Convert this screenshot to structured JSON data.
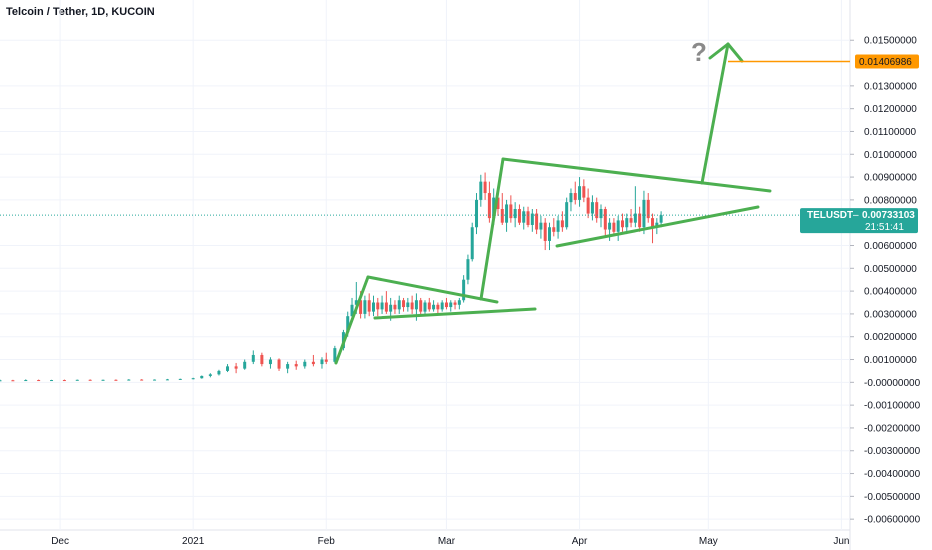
{
  "header": {
    "title": "Telcoin / Tether, 1D, KUCOIN"
  },
  "price_tag": {
    "symbol": "TELUSDT",
    "separator": "–",
    "price": "0.00733103",
    "countdown": "21:51:41"
  },
  "target_tag": {
    "price": "0.01406986"
  },
  "annotation": {
    "question": "?"
  },
  "colors": {
    "up": "#26a69a",
    "down": "#ef5350",
    "drawing": "#4caf50",
    "target": "#ff9800",
    "price_tag": "#26a69a",
    "grid": "#f0f3fa",
    "axis_text": "#131722"
  },
  "chart_data": {
    "type": "candlestick",
    "title": "Telcoin / Tether, 1D, KUCOIN",
    "ylim": [
      -0.0063,
      0.0158
    ],
    "yticks": [
      {
        "value": 0.015,
        "label": "0.01500000"
      },
      {
        "value": 0.013,
        "label": "0.01300000"
      },
      {
        "value": 0.012,
        "label": "0.01200000"
      },
      {
        "value": 0.011,
        "label": "0.01100000"
      },
      {
        "value": 0.01,
        "label": "0.01000000"
      },
      {
        "value": 0.009,
        "label": "0.00900000"
      },
      {
        "value": 0.008,
        "label": "0.00800000"
      },
      {
        "value": 0.006,
        "label": "0.00600000"
      },
      {
        "value": 0.005,
        "label": "0.00500000"
      },
      {
        "value": 0.004,
        "label": "0.00400000"
      },
      {
        "value": 0.003,
        "label": "0.00300000"
      },
      {
        "value": 0.002,
        "label": "0.00200000"
      },
      {
        "value": 0.001,
        "label": "0.00100000"
      },
      {
        "value": 0.0,
        "label": "-0.00000000"
      },
      {
        "value": -0.001,
        "label": "-0.00100000"
      },
      {
        "value": -0.002,
        "label": "-0.00200000"
      },
      {
        "value": -0.003,
        "label": "-0.00300000"
      },
      {
        "value": -0.004,
        "label": "-0.00400000"
      },
      {
        "value": -0.005,
        "label": "-0.00500000"
      },
      {
        "value": -0.006,
        "label": "-0.00600000"
      }
    ],
    "xticks": [
      {
        "date": "2020-12-01",
        "label": "Dec"
      },
      {
        "date": "2021-01-01",
        "label": "2021"
      },
      {
        "date": "2021-02-01",
        "label": "Feb"
      },
      {
        "date": "2021-03-01",
        "label": "Mar"
      },
      {
        "date": "2021-04-01",
        "label": "Apr"
      },
      {
        "date": "2021-05-01",
        "label": "May"
      },
      {
        "date": "2021-06-01",
        "label": "Jun"
      }
    ],
    "xlim": [
      "2020-11-17",
      "2021-06-03"
    ],
    "last_price": 0.00733103,
    "target_price": 0.01406986,
    "series": [
      {
        "date": "2020-11-17",
        "values": [
          8e-05,
          0.00012,
          5e-05,
          9e-05
        ]
      },
      {
        "date": "2020-11-20",
        "values": [
          9e-05,
          0.00011,
          6e-05,
          8e-05
        ]
      },
      {
        "date": "2020-11-23",
        "values": [
          8e-05,
          0.00013,
          6e-05,
          0.0001
        ]
      },
      {
        "date": "2020-11-26",
        "values": [
          0.0001,
          0.00012,
          7e-05,
          9e-05
        ]
      },
      {
        "date": "2020-11-29",
        "values": [
          9e-05,
          0.00011,
          7e-05,
          0.0001
        ]
      },
      {
        "date": "2020-12-02",
        "values": [
          0.0001,
          0.00012,
          8e-05,
          9e-05
        ]
      },
      {
        "date": "2020-12-05",
        "values": [
          9e-05,
          0.00012,
          8e-05,
          0.00011
        ]
      },
      {
        "date": "2020-12-08",
        "values": [
          0.00011,
          0.00013,
          9e-05,
          0.0001
        ]
      },
      {
        "date": "2020-12-11",
        "values": [
          0.0001,
          0.00012,
          8e-05,
          0.00011
        ]
      },
      {
        "date": "2020-12-14",
        "values": [
          0.00011,
          0.00013,
          9e-05,
          0.0001
        ]
      },
      {
        "date": "2020-12-17",
        "values": [
          0.0001,
          0.00014,
          9e-05,
          0.00012
        ]
      },
      {
        "date": "2020-12-20",
        "values": [
          0.00012,
          0.00014,
          0.0001,
          0.00011
        ]
      },
      {
        "date": "2020-12-23",
        "values": [
          0.00011,
          0.00013,
          9e-05,
          0.00012
        ]
      },
      {
        "date": "2020-12-26",
        "values": [
          0.00012,
          0.00015,
          0.0001,
          0.00013
        ]
      },
      {
        "date": "2020-12-29",
        "values": [
          0.00013,
          0.00016,
          0.00011,
          0.00015
        ]
      },
      {
        "date": "2021-01-01",
        "values": [
          0.00015,
          0.0002,
          0.00013,
          0.00018
        ]
      },
      {
        "date": "2021-01-03",
        "values": [
          0.00018,
          0.0003,
          0.00016,
          0.00028
        ]
      },
      {
        "date": "2021-01-05",
        "values": [
          0.00028,
          0.0004,
          0.00022,
          0.00035
        ]
      },
      {
        "date": "2021-01-07",
        "values": [
          0.00035,
          0.00055,
          0.0003,
          0.0005
        ]
      },
      {
        "date": "2021-01-09",
        "values": [
          0.0005,
          0.0008,
          0.00045,
          0.0007
        ]
      },
      {
        "date": "2021-01-11",
        "values": [
          0.0007,
          0.00085,
          0.0004,
          0.0006
        ]
      },
      {
        "date": "2021-01-13",
        "values": [
          0.0006,
          0.001,
          0.00055,
          0.0009
        ]
      },
      {
        "date": "2021-01-15",
        "values": [
          0.0009,
          0.0014,
          0.0008,
          0.0012
        ]
      },
      {
        "date": "2021-01-17",
        "values": [
          0.0012,
          0.0013,
          0.0007,
          0.0008
        ]
      },
      {
        "date": "2021-01-19",
        "values": [
          0.0008,
          0.0011,
          0.0006,
          0.001
        ]
      },
      {
        "date": "2021-01-21",
        "values": [
          0.001,
          0.00105,
          0.0005,
          0.0006
        ]
      },
      {
        "date": "2021-01-23",
        "values": [
          0.0006,
          0.0009,
          0.0004,
          0.0008
        ]
      },
      {
        "date": "2021-01-25",
        "values": [
          0.0008,
          0.00095,
          0.00055,
          0.0007
        ]
      },
      {
        "date": "2021-01-27",
        "values": [
          0.0007,
          0.001,
          0.0006,
          0.0009
        ]
      },
      {
        "date": "2021-01-29",
        "values": [
          0.0009,
          0.0012,
          0.0007,
          0.0008
        ]
      },
      {
        "date": "2021-01-31",
        "values": [
          0.0008,
          0.0011,
          0.0006,
          0.001
        ]
      },
      {
        "date": "2021-02-01",
        "values": [
          0.001,
          0.0013,
          0.0008,
          0.0009
        ]
      },
      {
        "date": "2021-02-03",
        "values": [
          0.0009,
          0.0016,
          0.00085,
          0.0015
        ]
      },
      {
        "date": "2021-02-05",
        "values": [
          0.0015,
          0.0023,
          0.0014,
          0.0022
        ]
      },
      {
        "date": "2021-02-06",
        "values": [
          0.0022,
          0.0031,
          0.002,
          0.0029
        ]
      },
      {
        "date": "2021-02-07",
        "values": [
          0.0029,
          0.0037,
          0.0027,
          0.0034
        ]
      },
      {
        "date": "2021-02-08",
        "values": [
          0.0034,
          0.0044,
          0.003,
          0.0036
        ]
      },
      {
        "date": "2021-02-09",
        "values": [
          0.0036,
          0.004,
          0.0028,
          0.003
        ]
      },
      {
        "date": "2021-02-10",
        "values": [
          0.003,
          0.0038,
          0.0028,
          0.0036
        ]
      },
      {
        "date": "2021-02-11",
        "values": [
          0.0036,
          0.0039,
          0.0029,
          0.0031
        ]
      },
      {
        "date": "2021-02-12",
        "values": [
          0.0031,
          0.0038,
          0.0029,
          0.0035
        ]
      },
      {
        "date": "2021-02-13",
        "values": [
          0.0035,
          0.0037,
          0.0029,
          0.0032
        ]
      },
      {
        "date": "2021-02-14",
        "values": [
          0.0032,
          0.0038,
          0.003,
          0.0035
        ]
      },
      {
        "date": "2021-02-15",
        "values": [
          0.0035,
          0.004,
          0.003,
          0.0031
        ]
      },
      {
        "date": "2021-02-16",
        "values": [
          0.0031,
          0.0037,
          0.0027,
          0.0034
        ]
      },
      {
        "date": "2021-02-17",
        "values": [
          0.0034,
          0.0036,
          0.003,
          0.0032
        ]
      },
      {
        "date": "2021-02-18",
        "values": [
          0.0032,
          0.0038,
          0.003,
          0.0036
        ]
      },
      {
        "date": "2021-02-19",
        "values": [
          0.0036,
          0.0037,
          0.0031,
          0.0033
        ]
      },
      {
        "date": "2021-02-20",
        "values": [
          0.0033,
          0.0037,
          0.0031,
          0.0035
        ]
      },
      {
        "date": "2021-02-21",
        "values": [
          0.0035,
          0.0038,
          0.003,
          0.0032
        ]
      },
      {
        "date": "2021-02-22",
        "values": [
          0.0032,
          0.0039,
          0.0027,
          0.0036
        ]
      },
      {
        "date": "2021-02-23",
        "values": [
          0.0036,
          0.0037,
          0.0029,
          0.0031
        ]
      },
      {
        "date": "2021-02-24",
        "values": [
          0.0031,
          0.0036,
          0.003,
          0.0035
        ]
      },
      {
        "date": "2021-02-25",
        "values": [
          0.0035,
          0.0037,
          0.0031,
          0.0032
        ]
      },
      {
        "date": "2021-02-26",
        "values": [
          0.0032,
          0.0036,
          0.0031,
          0.0034
        ]
      },
      {
        "date": "2021-02-27",
        "values": [
          0.0034,
          0.0035,
          0.003,
          0.0032
        ]
      },
      {
        "date": "2021-02-28",
        "values": [
          0.0032,
          0.0036,
          0.0031,
          0.0035
        ]
      },
      {
        "date": "2021-03-01",
        "values": [
          0.0035,
          0.0037,
          0.0032,
          0.0033
        ]
      },
      {
        "date": "2021-03-02",
        "values": [
          0.0033,
          0.0036,
          0.0031,
          0.0035
        ]
      },
      {
        "date": "2021-03-03",
        "values": [
          0.0035,
          0.0036,
          0.0032,
          0.0034
        ]
      },
      {
        "date": "2021-03-04",
        "values": [
          0.0034,
          0.0037,
          0.0032,
          0.0036
        ]
      },
      {
        "date": "2021-03-05",
        "values": [
          0.0036,
          0.0047,
          0.0035,
          0.0045
        ]
      },
      {
        "date": "2021-03-06",
        "values": [
          0.0045,
          0.0056,
          0.0043,
          0.0054
        ]
      },
      {
        "date": "2021-03-07",
        "values": [
          0.0054,
          0.007,
          0.0053,
          0.0068
        ]
      },
      {
        "date": "2021-03-08",
        "values": [
          0.0068,
          0.0083,
          0.0065,
          0.008
        ]
      },
      {
        "date": "2021-03-09",
        "values": [
          0.008,
          0.0091,
          0.0077,
          0.0088
        ]
      },
      {
        "date": "2021-03-10",
        "values": [
          0.0088,
          0.0092,
          0.008,
          0.0083
        ]
      },
      {
        "date": "2021-03-11",
        "values": [
          0.0083,
          0.0088,
          0.007,
          0.0072
        ]
      },
      {
        "date": "2021-03-12",
        "values": [
          0.0072,
          0.0085,
          0.0069,
          0.0081
        ]
      },
      {
        "date": "2021-03-13",
        "values": [
          0.0081,
          0.0084,
          0.0073,
          0.0076
        ]
      },
      {
        "date": "2021-03-14",
        "values": [
          0.0076,
          0.0083,
          0.0069,
          0.007
        ]
      },
      {
        "date": "2021-03-15",
        "values": [
          0.007,
          0.008,
          0.0066,
          0.0078
        ]
      },
      {
        "date": "2021-03-16",
        "values": [
          0.0078,
          0.0082,
          0.007,
          0.0072
        ]
      },
      {
        "date": "2021-03-17",
        "values": [
          0.0072,
          0.0079,
          0.0068,
          0.0076
        ]
      },
      {
        "date": "2021-03-18",
        "values": [
          0.0076,
          0.0078,
          0.0069,
          0.007
        ]
      },
      {
        "date": "2021-03-19",
        "values": [
          0.007,
          0.0077,
          0.0067,
          0.0075
        ]
      },
      {
        "date": "2021-03-20",
        "values": [
          0.0075,
          0.0077,
          0.0068,
          0.0069
        ]
      },
      {
        "date": "2021-03-21",
        "values": [
          0.0069,
          0.0076,
          0.0066,
          0.0074
        ]
      },
      {
        "date": "2021-03-22",
        "values": [
          0.0074,
          0.0076,
          0.0065,
          0.0067
        ]
      },
      {
        "date": "2021-03-23",
        "values": [
          0.0067,
          0.0073,
          0.0063,
          0.007
        ]
      },
      {
        "date": "2021-03-24",
        "values": [
          0.007,
          0.0072,
          0.0058,
          0.0062
        ]
      },
      {
        "date": "2021-03-25",
        "values": [
          0.0062,
          0.007,
          0.0058,
          0.0068
        ]
      },
      {
        "date": "2021-03-26",
        "values": [
          0.0068,
          0.0072,
          0.0064,
          0.0066
        ]
      },
      {
        "date": "2021-03-27",
        "values": [
          0.0066,
          0.0073,
          0.0063,
          0.0071
        ]
      },
      {
        "date": "2021-03-28",
        "values": [
          0.0071,
          0.0075,
          0.0066,
          0.0068
        ]
      },
      {
        "date": "2021-03-29",
        "values": [
          0.0068,
          0.0081,
          0.0067,
          0.0079
        ]
      },
      {
        "date": "2021-03-30",
        "values": [
          0.0079,
          0.0085,
          0.0075,
          0.0083
        ]
      },
      {
        "date": "2021-03-31",
        "values": [
          0.0083,
          0.0088,
          0.0078,
          0.008
        ]
      },
      {
        "date": "2021-04-01",
        "values": [
          0.008,
          0.009,
          0.0077,
          0.0086
        ]
      },
      {
        "date": "2021-04-02",
        "values": [
          0.0086,
          0.0089,
          0.0079,
          0.0081
        ]
      },
      {
        "date": "2021-04-03",
        "values": [
          0.0081,
          0.0085,
          0.0072,
          0.0074
        ]
      },
      {
        "date": "2021-04-04",
        "values": [
          0.0074,
          0.0082,
          0.0071,
          0.0079
        ]
      },
      {
        "date": "2021-04-05",
        "values": [
          0.0079,
          0.0081,
          0.007,
          0.0072
        ]
      },
      {
        "date": "2021-04-06",
        "values": [
          0.0072,
          0.0078,
          0.0068,
          0.0076
        ]
      },
      {
        "date": "2021-04-07",
        "values": [
          0.0076,
          0.0077,
          0.0064,
          0.0067
        ]
      },
      {
        "date": "2021-04-08",
        "values": [
          0.0067,
          0.0072,
          0.0062,
          0.007
        ]
      },
      {
        "date": "2021-04-09",
        "values": [
          0.007,
          0.0072,
          0.0064,
          0.0066
        ]
      },
      {
        "date": "2021-04-10",
        "values": [
          0.0066,
          0.0073,
          0.0062,
          0.0071
        ]
      },
      {
        "date": "2021-04-11",
        "values": [
          0.0071,
          0.0074,
          0.0066,
          0.0068
        ]
      },
      {
        "date": "2021-04-12",
        "values": [
          0.0068,
          0.0074,
          0.0065,
          0.0072
        ]
      },
      {
        "date": "2021-04-13",
        "values": [
          0.0072,
          0.0076,
          0.0068,
          0.007
        ]
      },
      {
        "date": "2021-04-14",
        "values": [
          0.007,
          0.0086,
          0.0068,
          0.0074
        ]
      },
      {
        "date": "2021-04-15",
        "values": [
          0.0074,
          0.0077,
          0.0066,
          0.0068
        ]
      },
      {
        "date": "2021-04-16",
        "values": [
          0.0068,
          0.0084,
          0.0065,
          0.008
        ]
      },
      {
        "date": "2021-04-17",
        "values": [
          0.008,
          0.0083,
          0.007,
          0.0072
        ]
      },
      {
        "date": "2021-04-18",
        "values": [
          0.0072,
          0.0074,
          0.0061,
          0.0068
        ]
      },
      {
        "date": "2021-04-19",
        "values": [
          0.0068,
          0.0072,
          0.0065,
          0.007
        ]
      },
      {
        "date": "2021-04-20",
        "values": [
          0.007,
          0.0075,
          0.0068,
          0.00733
        ]
      }
    ]
  }
}
